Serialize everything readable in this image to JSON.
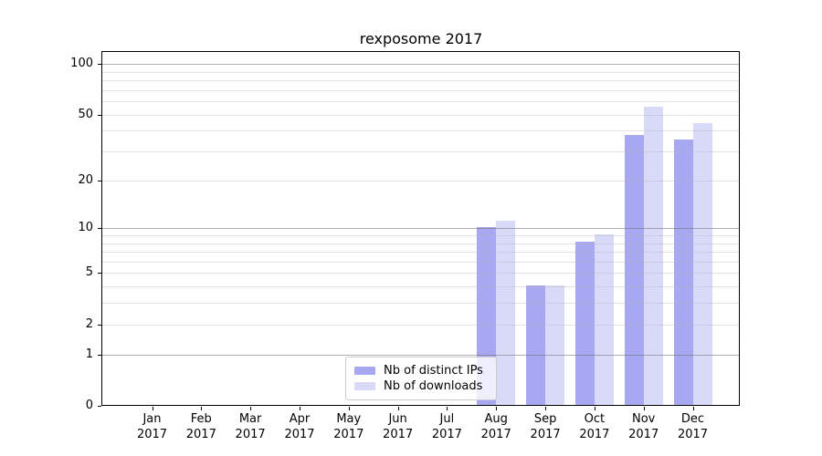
{
  "title": "rexposome 2017",
  "legend": {
    "items": [
      {
        "label": "Nb of distinct IPs",
        "color": "#a8a8f2"
      },
      {
        "label": "Nb of downloads",
        "color": "#d9d9f8"
      }
    ]
  },
  "chart_data": {
    "type": "bar",
    "title": "rexposome 2017",
    "categories": [
      "Jan",
      "Feb",
      "Mar",
      "Apr",
      "May",
      "Jun",
      "Jul",
      "Aug",
      "Sep",
      "Oct",
      "Nov",
      "Dec"
    ],
    "year_label": "2017",
    "series": [
      {
        "name": "Nb of distinct IPs",
        "color": "#a8a8f2",
        "values": [
          0,
          0,
          0,
          0,
          0,
          0,
          0,
          10,
          4,
          8,
          37,
          35
        ]
      },
      {
        "name": "Nb of downloads",
        "color": "#d9d9f8",
        "values": [
          0,
          0,
          0,
          0,
          0,
          0,
          0,
          11,
          4,
          9,
          55,
          44
        ]
      }
    ],
    "yscale": "log10(1+v)",
    "y_tick_values": [
      0,
      1,
      2,
      5,
      10,
      20,
      50,
      100
    ],
    "y_tick_labels": [
      "0",
      "1",
      "2",
      "5",
      "10",
      "20",
      "50",
      "100"
    ],
    "y_max_value": 117.5,
    "major_gridline_values": [
      1,
      10,
      100
    ],
    "minor_gridline_values": [
      2,
      3,
      4,
      5,
      6,
      7,
      8,
      9,
      20,
      30,
      40,
      50,
      60,
      70,
      80,
      90
    ],
    "grid": true,
    "legend_position": "lower center",
    "xlabel": "",
    "ylabel": ""
  }
}
